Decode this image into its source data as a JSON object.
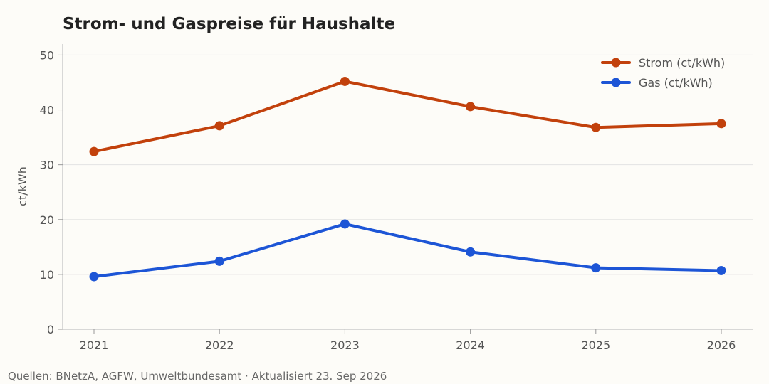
{
  "chart_data": {
    "type": "line",
    "title": "Strom- und Gaspreise für Haushalte",
    "xlabel": "",
    "ylabel": "ct/kWh",
    "x": [
      "2021",
      "2022",
      "2023",
      "2024",
      "2025",
      "2026"
    ],
    "ylim": [
      0,
      52
    ],
    "yticks": [
      "0",
      "10",
      "20",
      "30",
      "40",
      "50"
    ],
    "grid": true,
    "legend_position": "top-right",
    "series": [
      {
        "name": "Strom (ct/kWh)",
        "color": "#c2410c",
        "values": [
          32.4,
          37.1,
          45.2,
          40.6,
          36.8,
          37.5
        ]
      },
      {
        "name": "Gas (ct/kWh)",
        "color": "#1d55d6",
        "values": [
          9.6,
          12.4,
          19.2,
          14.1,
          11.2,
          10.7
        ]
      }
    ],
    "source": "Quellen: BNetzA, AGFW, Umweltbundesamt · Aktualisiert 23. Sep 2026"
  }
}
